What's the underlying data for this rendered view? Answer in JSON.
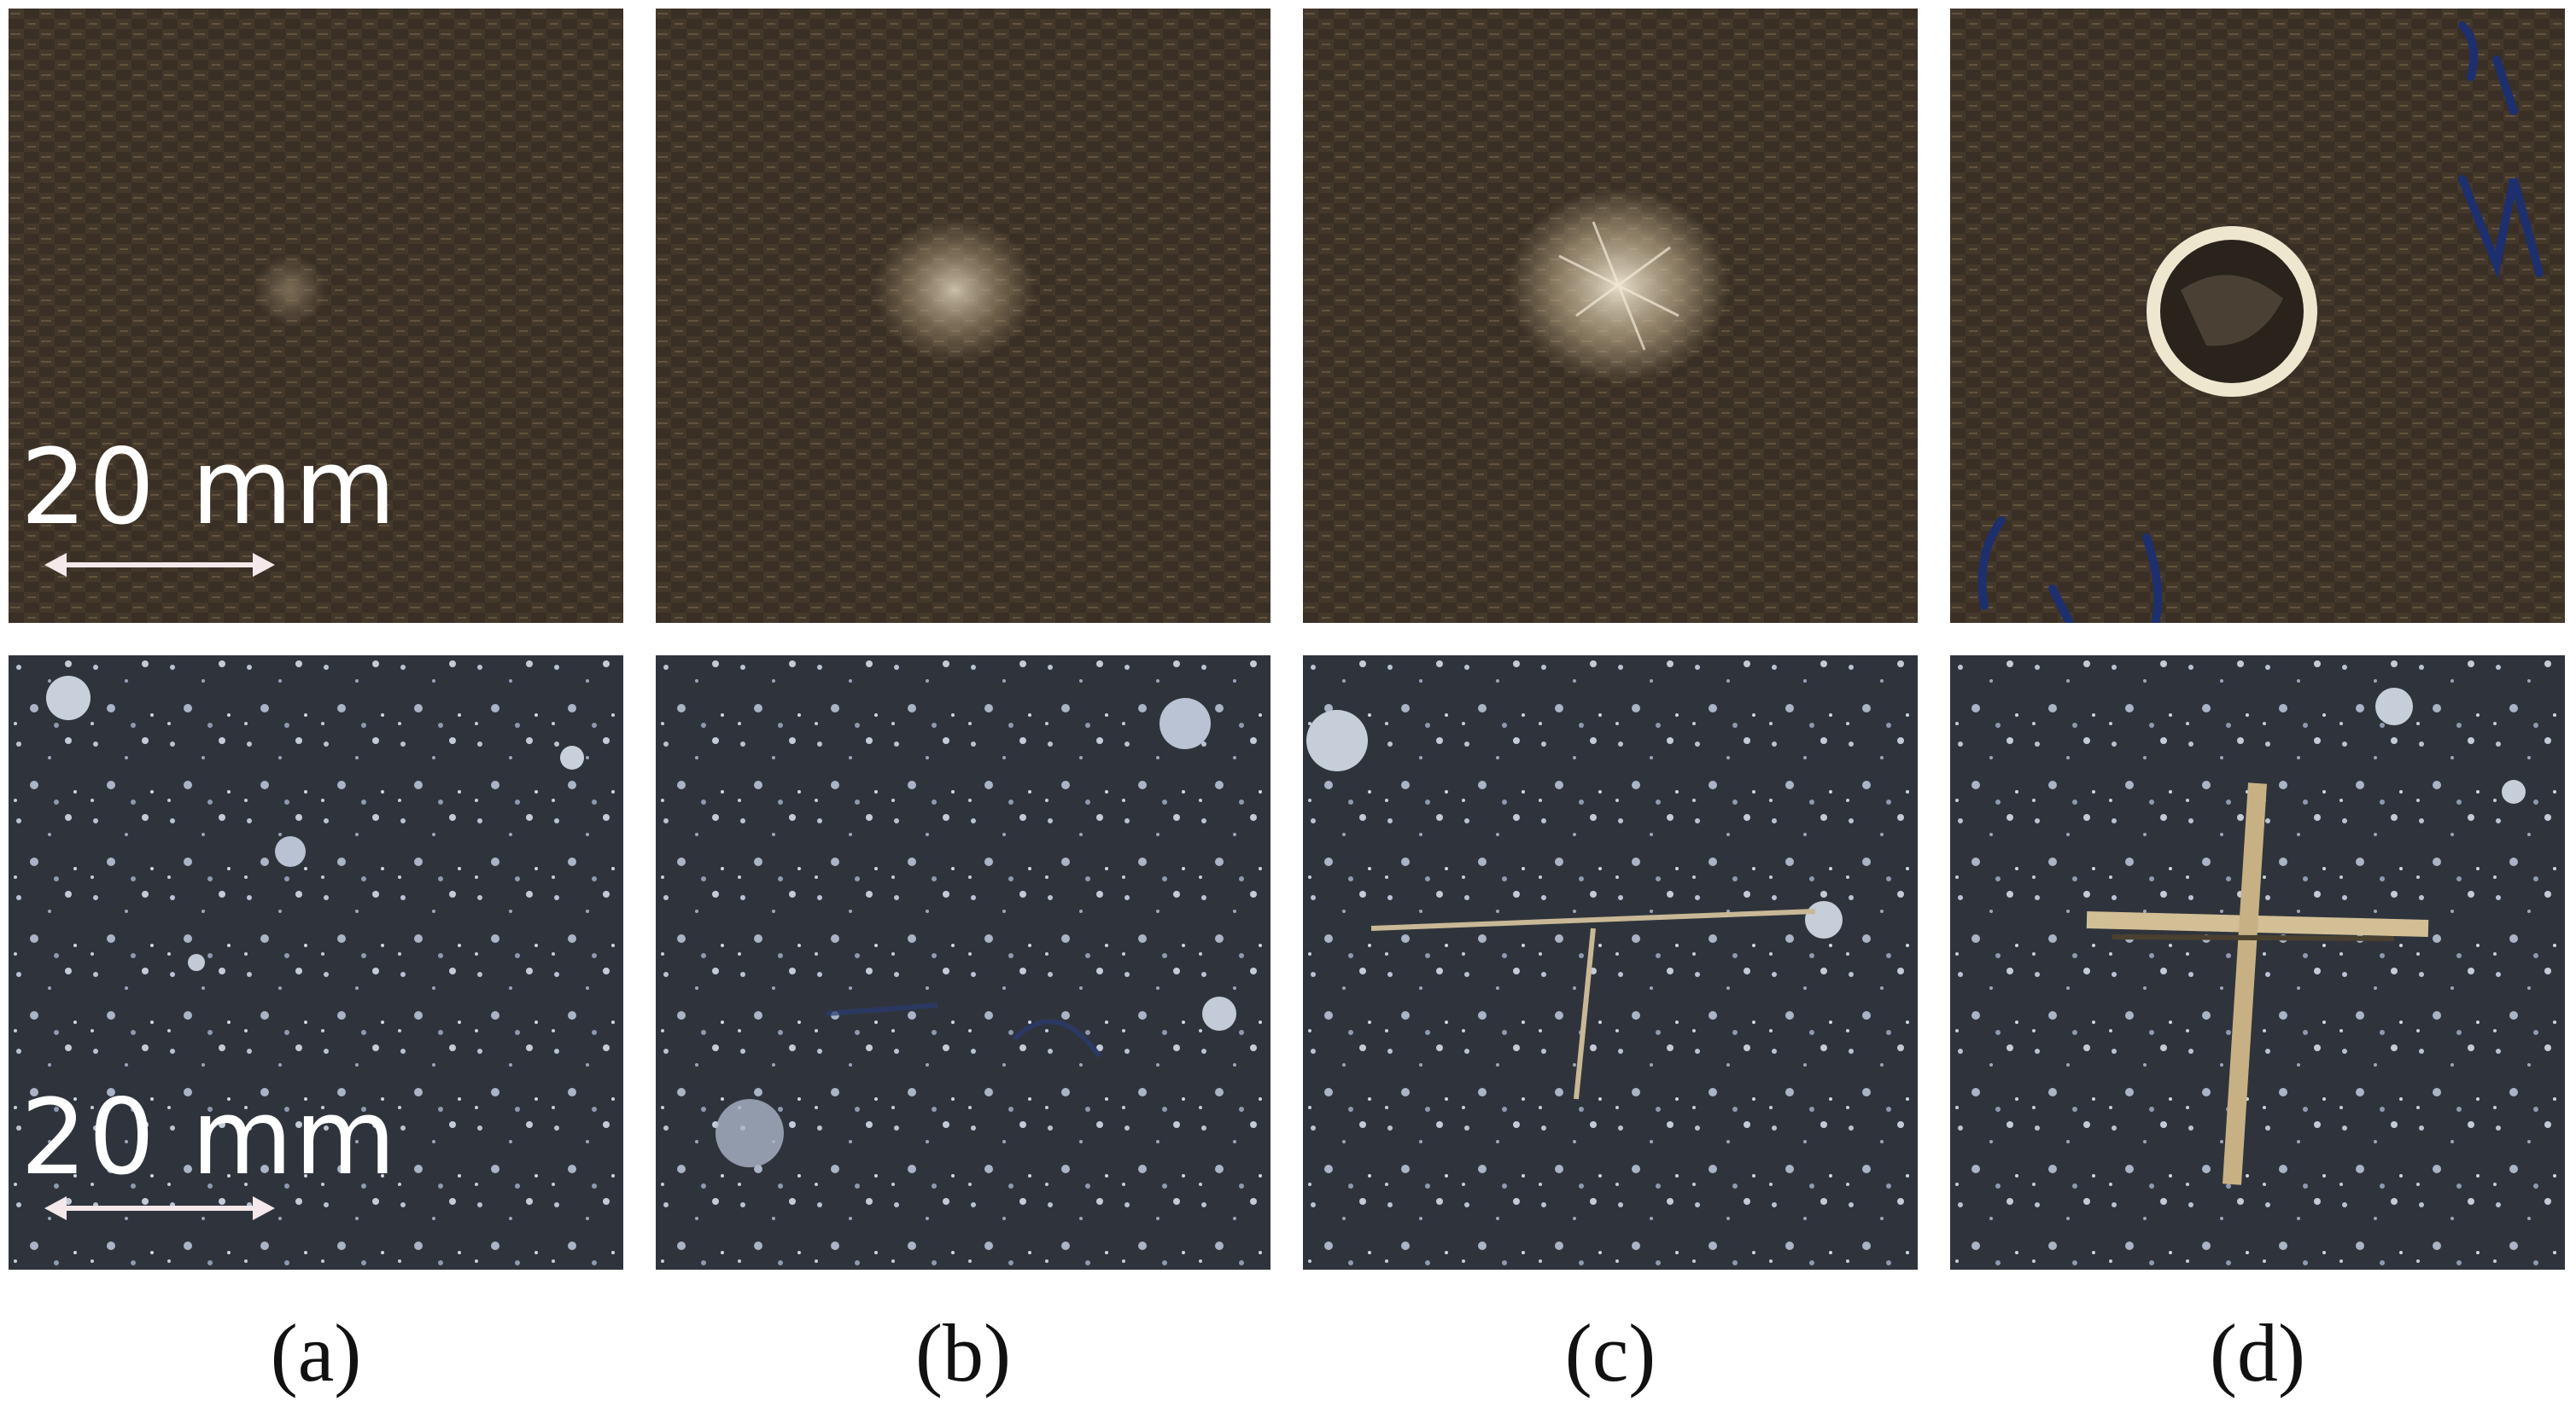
{
  "figure": {
    "top_row": {
      "material": "woven-composite-front",
      "base_color": "#3b3024",
      "panels": [
        "a",
        "b",
        "c",
        "d"
      ]
    },
    "bottom_row": {
      "material": "speckled-fabric-back",
      "base_color": "#2e333b",
      "panels": [
        "a",
        "b",
        "c",
        "d"
      ]
    },
    "scale_bar": {
      "label": "20 mm",
      "arrow_color": "#f5e8ea"
    },
    "captions": [
      "(a)",
      "(b)",
      "(c)",
      "(d)"
    ]
  },
  "colors": {
    "background": "#ffffff",
    "caption_text": "#111111",
    "scale_text": "#ffffff"
  }
}
